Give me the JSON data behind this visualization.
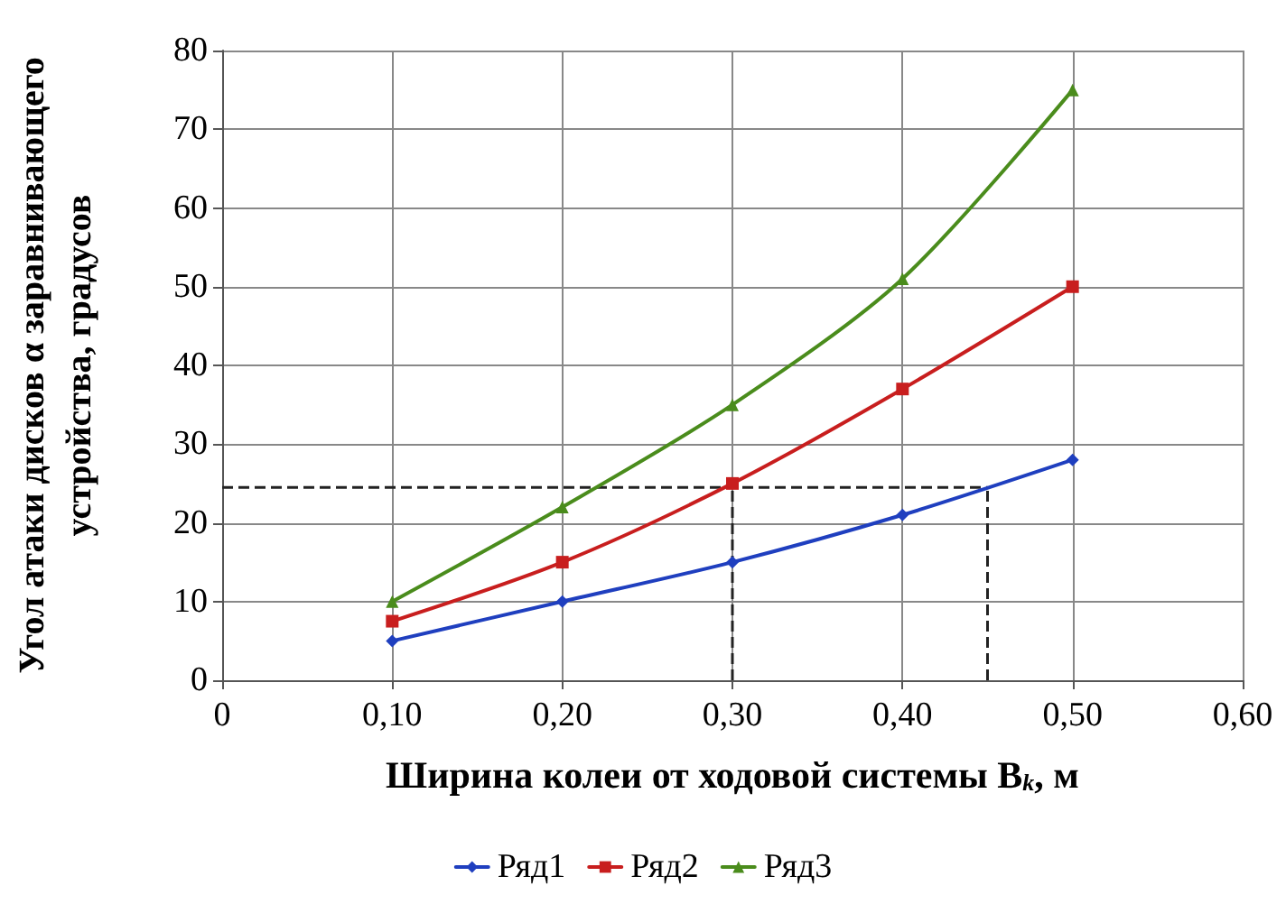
{
  "chart_data": {
    "type": "line",
    "xlabel": "Ширина колеи от ходовой системы B$_{k}$, м",
    "ylabel": "Угол атаки дисков α заравнивающего устройства, градусов",
    "x": [
      0.1,
      0.2,
      0.3,
      0.4,
      0.5
    ],
    "series": [
      {
        "name": "Ряд1",
        "color": "#1f3fbf",
        "marker": "diamond",
        "values": [
          5,
          10,
          15,
          21,
          28
        ]
      },
      {
        "name": "Ряд2",
        "color": "#c81e1e",
        "marker": "square",
        "values": [
          7.5,
          15,
          25,
          37,
          50
        ]
      },
      {
        "name": "Ряд3",
        "color": "#4a8c1c",
        "marker": "triangle",
        "values": [
          10,
          22,
          35,
          51,
          75
        ]
      }
    ],
    "xlim": [
      0,
      0.6
    ],
    "xticks": [
      0,
      {
        "value": 0.1,
        "label": "0,10"
      },
      {
        "value": 0.2,
        "label": "0,20"
      },
      {
        "value": 0.3,
        "label": "0,30"
      },
      {
        "value": 0.4,
        "label": "0,40"
      },
      {
        "value": 0.5,
        "label": "0,50"
      },
      {
        "value": 0.6,
        "label": "0,60"
      }
    ],
    "ylim": [
      0,
      80
    ],
    "yticks": [
      0,
      10,
      20,
      30,
      40,
      50,
      60,
      70,
      80
    ],
    "ref_lines": [
      {
        "axis": "y",
        "value": 24.5,
        "color": "#222222",
        "line_style": "dashed"
      },
      {
        "axis": "x",
        "value": 0.3,
        "color": "#222222",
        "line_style": "dashed"
      },
      {
        "axis": "x",
        "value": 0.45,
        "color": "#222222",
        "line_style": "dashed"
      }
    ],
    "grid": true,
    "legend": "bottom",
    "line_style": "solid"
  }
}
